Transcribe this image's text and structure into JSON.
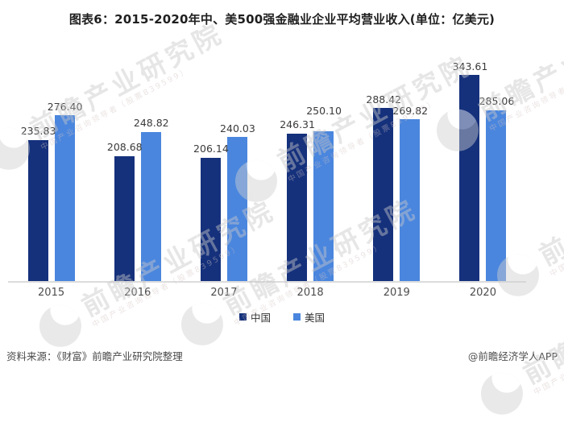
{
  "title": "图表6：2015-2020年中、美500强金融业企业平均营业收入(单位：亿美元)",
  "chart_data": {
    "type": "bar",
    "title": "图表6：2015-2020年中、美500强金融业企业平均营业收入(单位：亿美元)",
    "unit": "亿美元",
    "categories": [
      "2015",
      "2016",
      "2017",
      "2018",
      "2019",
      "2020"
    ],
    "series": [
      {
        "name": "中国",
        "color": "#15317C",
        "values": [
          235.83,
          208.68,
          206.14,
          246.31,
          288.42,
          343.61
        ]
      },
      {
        "name": "美国",
        "color": "#4A86DE",
        "values": [
          276.4,
          248.82,
          240.03,
          250.1,
          269.82,
          285.06
        ]
      }
    ],
    "ylim": [
      0,
      395
    ],
    "grid": false,
    "legend_position": "bottom",
    "value_labels": true,
    "axis_line_color": "#dcdcdc"
  },
  "footer": {
    "source": "资料来源：《财富》前瞻产业研究院整理",
    "credit": "@前瞻经济学人APP"
  },
  "watermark": {
    "text": "前瞻产业研究院",
    "subtext": "中国产业咨询领导者（股票839599）",
    "logo": "qianzhan-circle-logo"
  }
}
